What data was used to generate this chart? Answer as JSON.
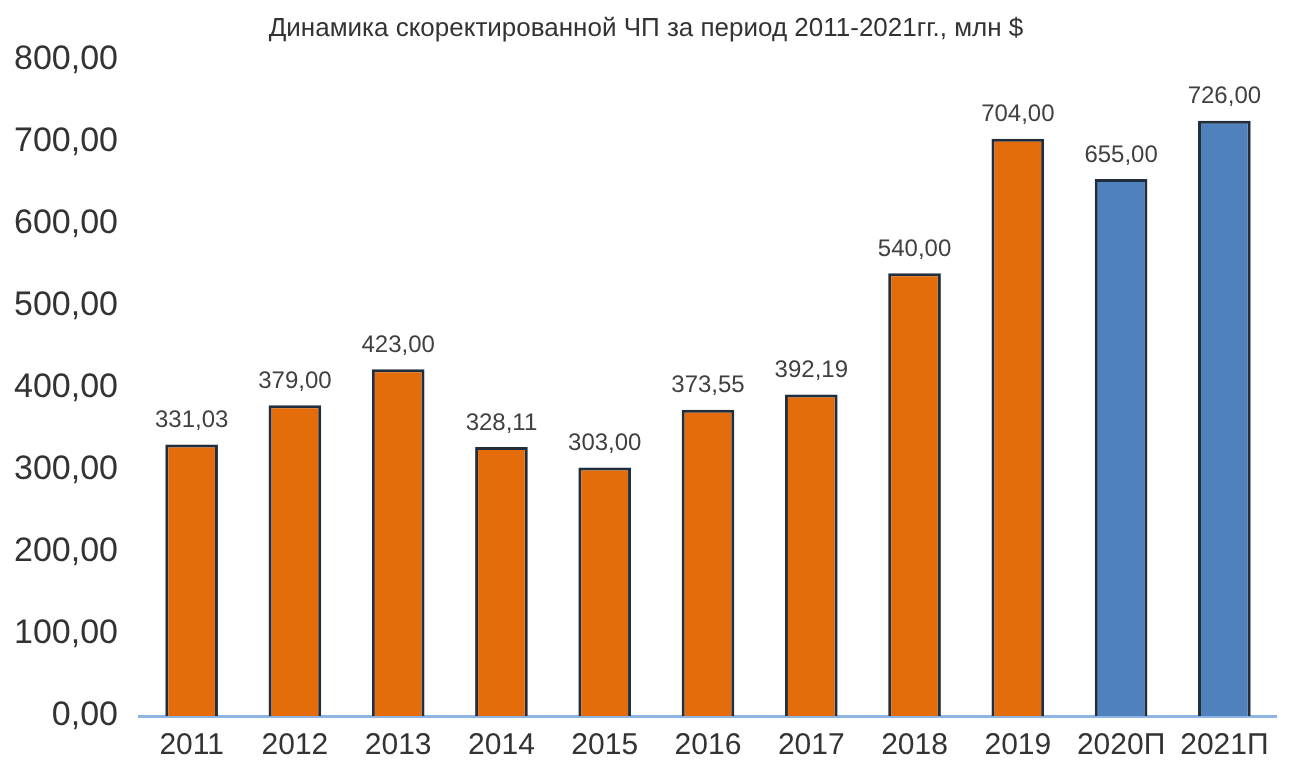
{
  "chart_data": {
    "type": "bar",
    "title": "Динамика скоректированной ЧП за период 2011-2021гг., млн $",
    "categories": [
      "2011",
      "2012",
      "2013",
      "2014",
      "2015",
      "2016",
      "2017",
      "2018",
      "2019",
      "2020П",
      "2021П"
    ],
    "values": [
      331.03,
      379,
      423,
      328.11,
      303,
      373.55,
      392.19,
      540,
      704,
      655,
      726
    ],
    "colors": [
      "#e46c0a",
      "#e46c0a",
      "#e46c0a",
      "#e46c0a",
      "#e46c0a",
      "#e46c0a",
      "#e46c0a",
      "#e46c0a",
      "#e46c0a",
      "#4f81bd",
      "#4f81bd"
    ],
    "value_labels": [
      "331,03",
      "379,00",
      "423,00",
      "328,11",
      "303,00",
      "373,55",
      "392,19",
      "540,00",
      "704,00",
      "655,00",
      "726,00"
    ],
    "ylim": [
      0,
      800
    ],
    "yticks": [
      {
        "value": 0,
        "label": "0,00"
      },
      {
        "value": 100,
        "label": "100,00"
      },
      {
        "value": 200,
        "label": "200,00"
      },
      {
        "value": 300,
        "label": "300,00"
      },
      {
        "value": 400,
        "label": "400,00"
      },
      {
        "value": 500,
        "label": "500,00"
      },
      {
        "value": 600,
        "label": "600,00"
      },
      {
        "value": 700,
        "label": "700,00"
      },
      {
        "value": 800,
        "label": "800,00"
      }
    ],
    "grid": false,
    "legend": false
  }
}
